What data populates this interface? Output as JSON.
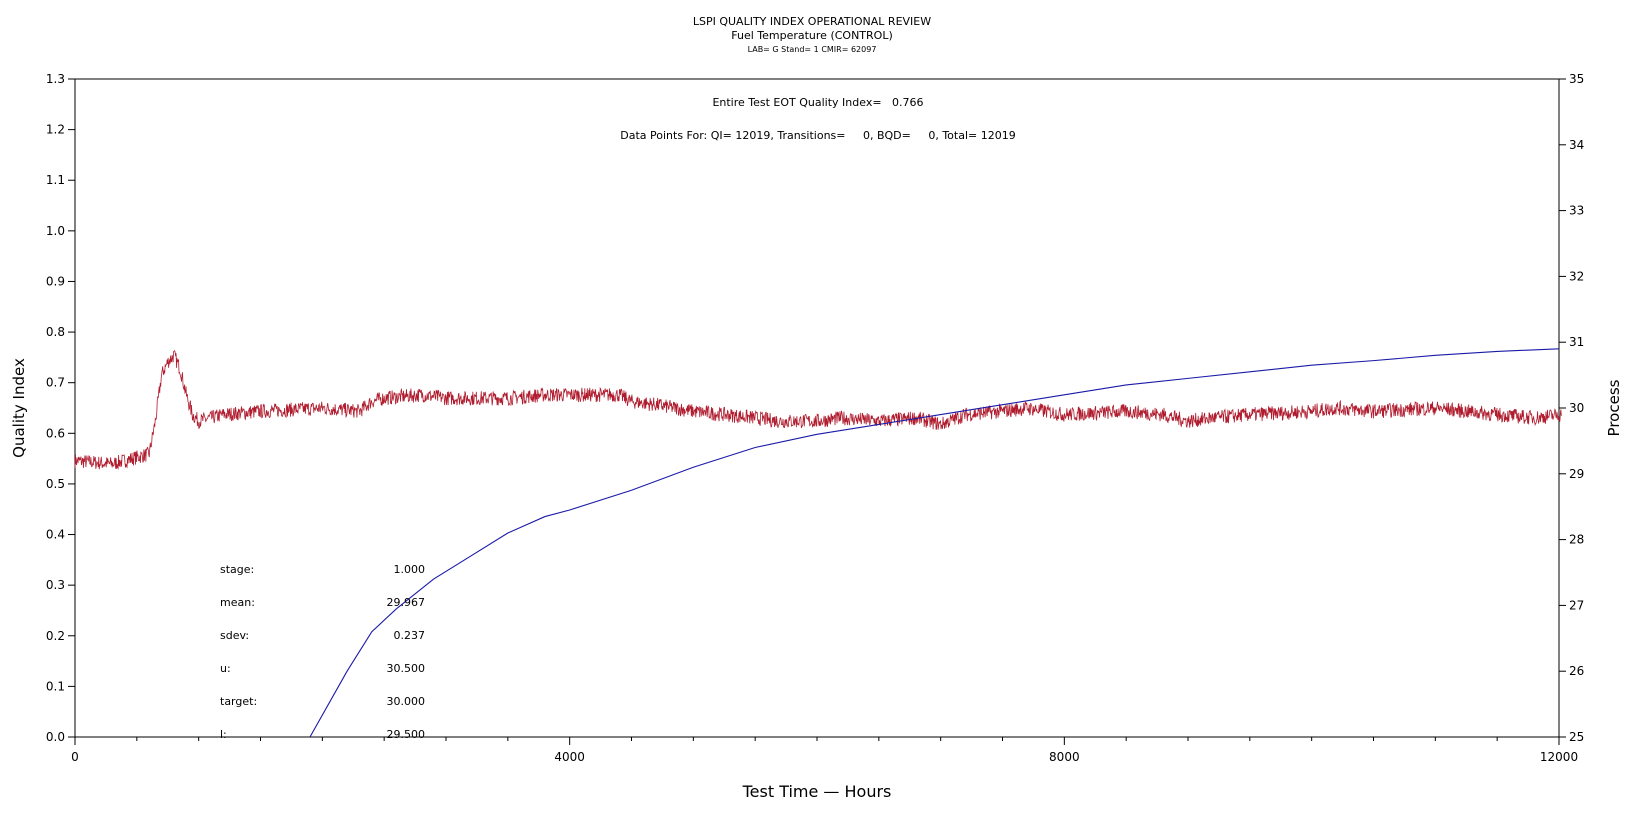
{
  "chart_data": {
    "type": "line",
    "title": "LSPI QUALITY INDEX OPERATIONAL REVIEW",
    "subtitle": "Fuel Temperature (CONTROL)",
    "subtitle2": "LAB= G Stand= 1 CMIR= 62097",
    "xlabel": "Test Time — Hours",
    "ylabel_left": "Quality Index",
    "ylabel_right": "Process",
    "xlim": [
      0,
      12000
    ],
    "ylim_left": [
      0.0,
      1.3
    ],
    "ylim_right": [
      25,
      35
    ],
    "x_ticks": [
      "0",
      "4000",
      "8000",
      "12000"
    ],
    "y_ticks_left": [
      "0.0",
      "0.1",
      "0.2",
      "0.3",
      "0.4",
      "0.5",
      "0.6",
      "0.7",
      "0.8",
      "0.9",
      "1.0",
      "1.1",
      "1.2",
      "1.3"
    ],
    "y_ticks_right": [
      "25",
      "26",
      "27",
      "28",
      "29",
      "30",
      "31",
      "32",
      "33",
      "34",
      "35"
    ],
    "grid": false,
    "annotations": {
      "qi_line": "Entire Test EOT Quality Index=   0.766",
      "points_line": "Data Points For: QI= 12019, Transitions=     0, BQD=     0, Total= 12019"
    },
    "stats": [
      {
        "label": "stage:",
        "value": "1.000"
      },
      {
        "label": "mean:",
        "value": "29.967"
      },
      {
        "label": "sdev:",
        "value": "0.237"
      },
      {
        "label": "u:",
        "value": "30.500"
      },
      {
        "label": "target:",
        "value": "30.000"
      },
      {
        "label": "l:",
        "value": "29.500"
      }
    ],
    "series": [
      {
        "axis": "right",
        "color": "#b01c2e",
        "noise": 0.05,
        "x": [
          0,
          300,
          500,
          600,
          650,
          700,
          750,
          800,
          850,
          900,
          950,
          1000,
          1100,
          1200,
          1500,
          2000,
          2300,
          2400,
          2500,
          2800,
          3000,
          3500,
          3800,
          4000,
          4400,
          4500,
          4700,
          5000,
          5500,
          5700,
          6000,
          6200,
          6500,
          6800,
          7000,
          7200,
          7500,
          7700,
          8000,
          8500,
          8800,
          9000,
          9200,
          9500,
          10000,
          10200,
          10500,
          11000,
          11500,
          11800,
          12019
        ],
        "y": [
          29.2,
          29.15,
          29.25,
          29.3,
          29.8,
          30.5,
          30.7,
          30.8,
          30.6,
          30.2,
          29.9,
          29.8,
          29.85,
          29.9,
          29.95,
          30.0,
          29.95,
          30.1,
          30.15,
          30.2,
          30.15,
          30.15,
          30.2,
          30.2,
          30.2,
          30.1,
          30.05,
          29.95,
          29.85,
          29.8,
          29.8,
          29.85,
          29.8,
          29.85,
          29.75,
          29.9,
          29.95,
          30.0,
          29.9,
          29.95,
          29.9,
          29.8,
          29.85,
          29.9,
          29.95,
          30.0,
          29.95,
          30.0,
          29.9,
          29.85,
          29.9
        ]
      },
      {
        "axis": "right",
        "color": "#1a1aa8",
        "noise": 0,
        "x": [
          1900,
          2200,
          2400,
          2600,
          2900,
          3200,
          3500,
          3800,
          4000,
          4500,
          5000,
          5500,
          6000,
          6500,
          7000,
          7500,
          8000,
          8500,
          9000,
          9500,
          10000,
          10500,
          11000,
          11500,
          12000
        ],
        "y": [
          25.0,
          26.0,
          26.6,
          26.95,
          27.4,
          27.75,
          28.1,
          28.35,
          28.45,
          28.75,
          29.1,
          29.4,
          29.6,
          29.75,
          29.9,
          30.05,
          30.2,
          30.35,
          30.45,
          30.55,
          30.65,
          30.72,
          30.8,
          30.86,
          30.9
        ]
      }
    ]
  }
}
